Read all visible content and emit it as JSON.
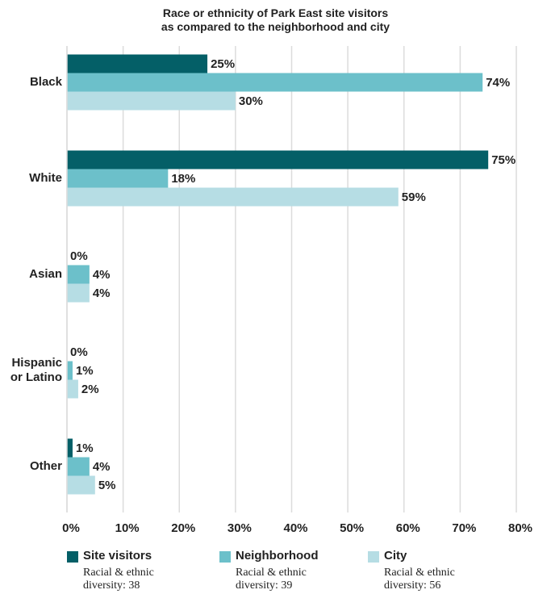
{
  "chart_data": {
    "type": "barh",
    "title": "Race or ethnicity of Park East site visitors\nas compared to the neighborhood and city",
    "categories": [
      "Black",
      "White",
      "Asian",
      "Hispanic\nor Latino",
      "Other"
    ],
    "series": [
      {
        "name": "Site visitors",
        "color": "#045f67",
        "values": [
          25,
          75,
          0,
          0,
          1
        ],
        "value_labels": [
          "25%",
          "75%",
          "0%",
          "0%",
          "1%"
        ],
        "description": "Racial & ethnic\ndiversity: 38"
      },
      {
        "name": "Neighborhood",
        "color": "#6cc0ca",
        "values": [
          74,
          18,
          4,
          1,
          4
        ],
        "value_labels": [
          "74%",
          "18%",
          "4%",
          "1%",
          "4%"
        ],
        "description": "Racial & ethnic\ndiversity: 39"
      },
      {
        "name": "City",
        "color": "#b6dde4",
        "values": [
          30,
          59,
          4,
          2,
          5
        ],
        "value_labels": [
          "30%",
          "59%",
          "4%",
          "2%",
          "5%"
        ],
        "description": "Racial & ethnic\ndiversity: 56"
      }
    ],
    "xlim": [
      0,
      80
    ],
    "xticks": [
      {
        "value": 0,
        "label": "0%"
      },
      {
        "value": 10,
        "label": "10%"
      },
      {
        "value": 20,
        "label": "20%"
      },
      {
        "value": 30,
        "label": "30%"
      },
      {
        "value": 40,
        "label": "40%"
      },
      {
        "value": 50,
        "label": "50%"
      },
      {
        "value": 60,
        "label": "60%"
      },
      {
        "value": 70,
        "label": "70%"
      },
      {
        "value": 80,
        "label": "80%"
      }
    ],
    "grid": true
  }
}
